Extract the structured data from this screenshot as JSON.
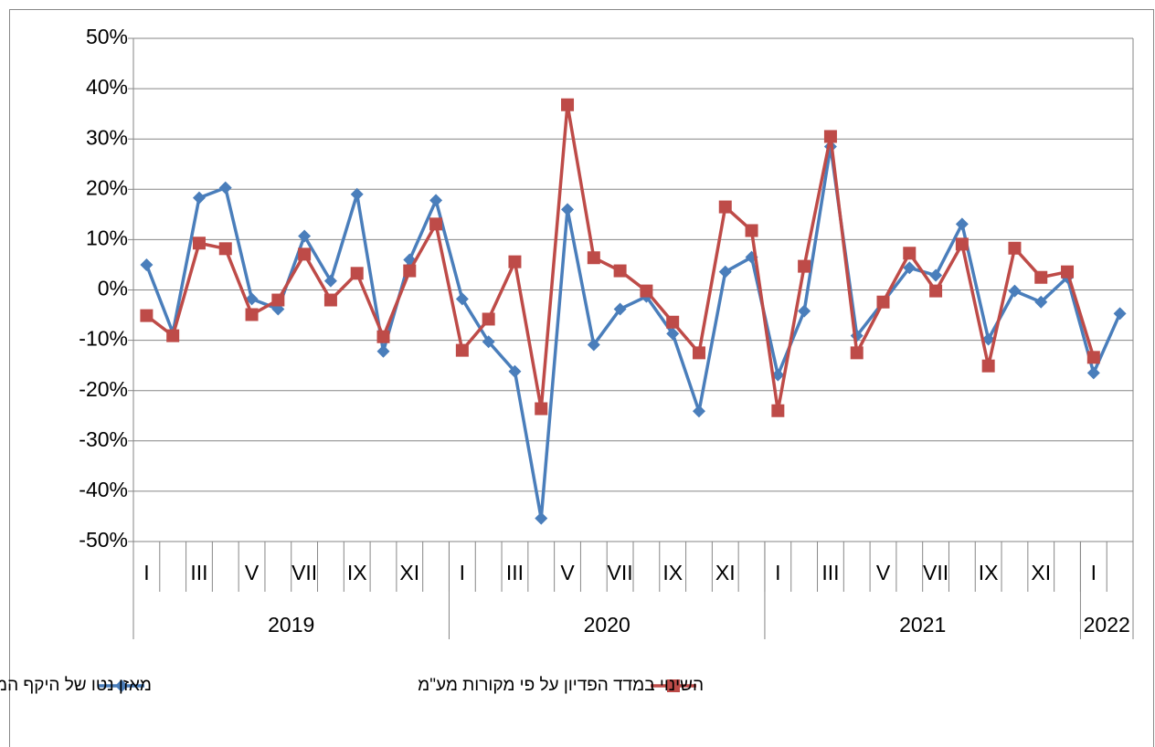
{
  "chart_data": {
    "type": "line",
    "categories": [
      "I",
      null,
      "III",
      null,
      "V",
      null,
      "VII",
      null,
      "IX",
      null,
      "XI",
      null,
      "I",
      null,
      "III",
      null,
      "V",
      null,
      "VII",
      null,
      "IX",
      null,
      "XI",
      null,
      "I",
      null,
      "III",
      null,
      "V",
      null,
      "VII",
      null,
      "IX",
      null,
      "XI",
      null,
      "I",
      null
    ],
    "category_groups": [
      {
        "label": "2019",
        "size": 12
      },
      {
        "label": "2020",
        "size": 12
      },
      {
        "label": "2021",
        "size": 12
      },
      {
        "label": "2022",
        "size": 2
      }
    ],
    "series": [
      {
        "name": "מאזן נטו של היקף המכירות בענף המסחר הקמעוני",
        "color": "#4a7ebb",
        "marker": "diamond",
        "values": [
          5,
          -8.5,
          18.3,
          20.3,
          -1.8,
          -3.8,
          10.7,
          1.8,
          19,
          -12.2,
          6,
          17.8,
          -1.8,
          -10.3,
          -16.2,
          -45.4,
          16,
          -10.9,
          -3.8,
          -1.3,
          -8.7,
          -24.1,
          3.6,
          6.5,
          -16.9,
          -4.2,
          28.5,
          -9.1,
          -2.4,
          4.4,
          2.9,
          13.1,
          -9.8,
          -0.2,
          -2.4,
          2.5,
          -16.5,
          -4.7
        ]
      },
      {
        "name": "השינוי במדד הפדיון על פי מקורות מע\"מ",
        "color": "#be4b48",
        "marker": "square",
        "values": [
          -5.1,
          -9.1,
          9.3,
          8.2,
          -4.9,
          -2,
          7.1,
          -2,
          3.3,
          -9.3,
          3.8,
          13.1,
          -12,
          -5.8,
          5.6,
          -23.6,
          36.8,
          6.4,
          3.8,
          -0.2,
          -6.4,
          -12.5,
          16.5,
          11.8,
          -24,
          4.7,
          30.5,
          -12.5,
          -2.4,
          7.3,
          -0.2,
          9.1,
          -15.1,
          8.3,
          2.5,
          3.6,
          -13.4,
          null
        ]
      }
    ],
    "ylim": [
      -50,
      50
    ],
    "yticks": [
      {
        "value": -50,
        "label": "-50%"
      },
      {
        "value": -40,
        "label": "-40%"
      },
      {
        "value": -30,
        "label": "-30%"
      },
      {
        "value": -20,
        "label": "-20%"
      },
      {
        "value": -10,
        "label": "-10%"
      },
      {
        "value": 0,
        "label": "0%"
      },
      {
        "value": 10,
        "label": "10%"
      },
      {
        "value": 20,
        "label": "20%"
      },
      {
        "value": 30,
        "label": "30%"
      },
      {
        "value": 40,
        "label": "40%"
      },
      {
        "value": 50,
        "label": "50%"
      }
    ],
    "grid": true,
    "legend": "bottom"
  }
}
